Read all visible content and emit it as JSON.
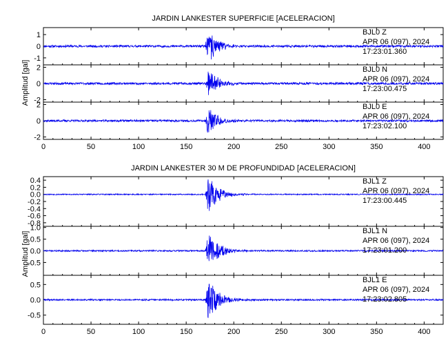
{
  "chart_data": [
    {
      "type": "line",
      "title": "JARDIN LANKESTER SUPERFICIE [ACELERACION]",
      "ylabel": "Amplitud  [gal]",
      "xlabel": "",
      "xlim": [
        0,
        420
      ],
      "x_ticks": [
        "0",
        "50",
        "100",
        "150",
        "200",
        "250",
        "300",
        "350",
        "400"
      ],
      "series_color": "#0000ee",
      "grid": false,
      "panels": [
        {
          "station": "BJL0",
          "component": "Z",
          "date_line": "APR 06 (097), 2024",
          "time": "17:23:01.360",
          "ylim": [
            -1.6,
            1.6
          ],
          "y_ticks": [
            "1",
            "0",
            "-1"
          ],
          "signal": {
            "onset": 170,
            "peak_time": 173,
            "peak_amp": 1.5,
            "decay": 10,
            "noise": 0.09,
            "seed": 11
          }
        },
        {
          "station": "BJL0",
          "component": "N",
          "date_line": "APR 06 (097), 2024",
          "time": "17:23:00.475",
          "ylim": [
            -2.3,
            2.3
          ],
          "y_ticks": [
            "2",
            "0",
            "-2"
          ],
          "signal": {
            "onset": 170,
            "peak_time": 173,
            "peak_amp": 1.9,
            "decay": 10,
            "noise": 0.13,
            "seed": 23
          }
        },
        {
          "station": "BJL0",
          "component": "E",
          "date_line": "APR 06 (097), 2024",
          "time": "17:23:02.100",
          "ylim": [
            -2.3,
            2.3
          ],
          "y_ticks": [
            "2",
            "0",
            "-2"
          ],
          "signal": {
            "onset": 170,
            "peak_time": 173,
            "peak_amp": 1.9,
            "decay": 10,
            "noise": 0.12,
            "seed": 37
          }
        }
      ]
    },
    {
      "type": "line",
      "title": "JARDIN LANKESTER 30 M DE PROFUNDIDAD [ACELERACION]",
      "ylabel": "Amplitud  [gal]",
      "xlabel": "",
      "xlim": [
        0,
        420
      ],
      "x_ticks": [
        "0",
        "50",
        "100",
        "150",
        "200",
        "250",
        "300",
        "350",
        "400"
      ],
      "series_color": "#0000ee",
      "grid": false,
      "panels": [
        {
          "station": "BJL1",
          "component": "Z",
          "date_line": "APR 06 (097), 2024",
          "time": "17:23:00.445",
          "ylim": [
            -0.9,
            0.5
          ],
          "y_ticks": [
            "0.4",
            "0.2",
            "0.0",
            "-0.2",
            "-0.4",
            "-0.6",
            "-0.8"
          ],
          "signal": {
            "onset": 170,
            "peak_time": 173,
            "peak_amp": 0.55,
            "decay": 11,
            "noise": 0.015,
            "seed": 53
          }
        },
        {
          "station": "BJL1",
          "component": "N",
          "date_line": "APR 06 (097), 2024",
          "time": "17:23:01.200",
          "ylim": [
            -1.05,
            1.05
          ],
          "y_ticks": [
            "1.0",
            "0.5",
            "0.0",
            "-0.5"
          ],
          "signal": {
            "onset": 170,
            "peak_time": 173,
            "peak_amp": 0.8,
            "decay": 11,
            "noise": 0.03,
            "seed": 71
          }
        },
        {
          "station": "BJL1",
          "component": "E",
          "date_line": "APR 06 (097), 2024",
          "time": "17:23:02.805",
          "ylim": [
            -0.8,
            0.8
          ],
          "y_ticks": [
            "0.5",
            "0.0",
            "-0.5"
          ],
          "signal": {
            "onset": 170,
            "peak_time": 173,
            "peak_amp": 0.72,
            "decay": 11,
            "noise": 0.025,
            "seed": 89
          }
        }
      ]
    }
  ]
}
